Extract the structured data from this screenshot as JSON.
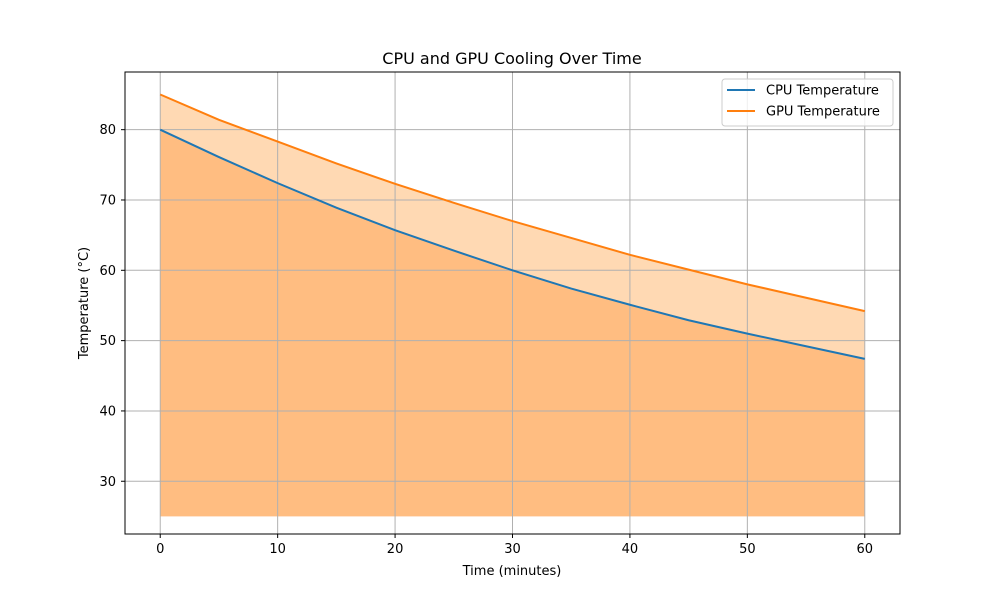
{
  "chart_data": {
    "type": "line",
    "title": "CPU and GPU Cooling Over Time",
    "xlabel": "Time (minutes)",
    "ylabel": "Temperature (°C)",
    "xlim": [
      -3,
      63
    ],
    "ylim": [
      22.5,
      88.2
    ],
    "xticks": [
      0,
      10,
      20,
      30,
      40,
      50,
      60
    ],
    "yticks": [
      30,
      40,
      50,
      60,
      70,
      80
    ],
    "grid": true,
    "legend_position": "top-right",
    "fill_baseline": 25,
    "x": [
      0,
      5,
      10,
      15,
      20,
      25,
      30,
      35,
      40,
      45,
      50,
      55,
      60
    ],
    "series": [
      {
        "name": "CPU Temperature",
        "color": "#1f77b4",
        "fill_color": "#ff7f0e",
        "values": [
          80.0,
          76.1,
          72.4,
          68.9,
          65.7,
          62.8,
          60.0,
          57.4,
          55.1,
          52.9,
          51.0,
          49.2,
          47.4
        ]
      },
      {
        "name": "GPU Temperature",
        "color": "#ff7f0e",
        "fill_color": "#ffbf80",
        "values": [
          85.0,
          81.4,
          78.3,
          75.2,
          72.3,
          69.6,
          67.0,
          64.6,
          62.2,
          60.1,
          58.0,
          56.1,
          54.2
        ]
      }
    ]
  }
}
